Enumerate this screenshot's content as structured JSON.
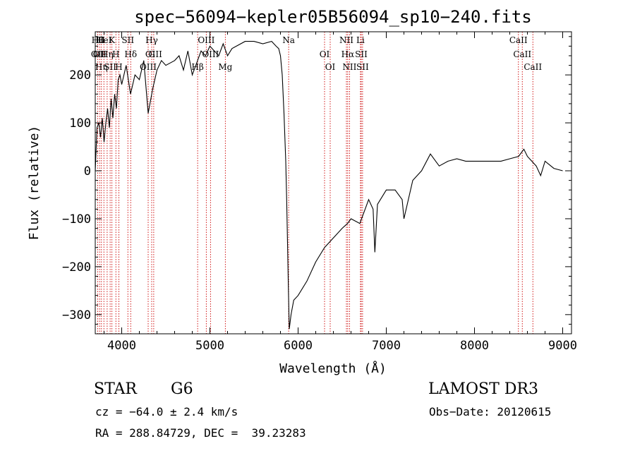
{
  "chart_data": {
    "type": "line",
    "title": "spec−56094−kepler05B56094_sp10−240.fits",
    "xlabel": "Wavelength (Å)",
    "ylabel": "Flux (relative)",
    "xlim": [
      3700,
      9100
    ],
    "ylim": [
      -340,
      290
    ],
    "xticks": [
      4000,
      5000,
      6000,
      7000,
      8000,
      9000
    ],
    "xtick_labels": [
      "4000",
      "5000",
      "6000",
      "7000",
      "8000",
      "9000"
    ],
    "yticks": [
      -300,
      -200,
      -100,
      0,
      100,
      200
    ],
    "ytick_labels": [
      "−300",
      "−200",
      "−100",
      "0",
      "100",
      "200"
    ],
    "grid": false,
    "line_color": "#000000",
    "marker_color": "#cc0000",
    "series": [
      {
        "x": [
          3700,
          3720,
          3740,
          3760,
          3780,
          3800,
          3820,
          3840,
          3860,
          3880,
          3900,
          3920,
          3940,
          3960,
          3980,
          4000,
          4050,
          4100,
          4150,
          4200,
          4250,
          4300,
          4350,
          4400,
          4450,
          4500,
          4550,
          4600,
          4650,
          4700,
          4750,
          4800,
          4850,
          4900,
          4950,
          5000,
          5050,
          5100,
          5150,
          5200,
          5250,
          5300,
          5400,
          5500,
          5600,
          5700,
          5750,
          5780,
          5800,
          5820,
          5840,
          5860,
          5870,
          5880,
          5890,
          5900,
          5920,
          5950,
          6000,
          6100,
          6200,
          6300,
          6400,
          6500,
          6560,
          6600,
          6700,
          6800,
          6850,
          6870,
          6900,
          7000,
          7100,
          7180,
          7200,
          7300,
          7400,
          7500,
          7560,
          7600,
          7700,
          7800,
          7900,
          8000,
          8100,
          8200,
          8300,
          8400,
          8500,
          8560,
          8600,
          8700,
          8750,
          8800,
          8900,
          9000
        ],
        "y": [
          0,
          90,
          100,
          70,
          110,
          60,
          100,
          130,
          90,
          150,
          110,
          160,
          130,
          190,
          200,
          180,
          220,
          160,
          200,
          190,
          230,
          120,
          170,
          210,
          230,
          220,
          225,
          230,
          240,
          210,
          250,
          200,
          225,
          250,
          240,
          260,
          250,
          240,
          265,
          240,
          255,
          260,
          270,
          270,
          265,
          270,
          260,
          255,
          240,
          200,
          120,
          20,
          -60,
          -150,
          -250,
          -330,
          -300,
          -270,
          -260,
          -230,
          -190,
          -160,
          -140,
          -120,
          -110,
          -100,
          -110,
          -60,
          -80,
          -170,
          -70,
          -40,
          -40,
          -60,
          -100,
          -20,
          0,
          35,
          20,
          10,
          20,
          25,
          20,
          20,
          20,
          20,
          20,
          25,
          30,
          45,
          30,
          10,
          -10,
          20,
          5,
          0
        ]
      }
    ],
    "line_markers": [
      {
        "x": 3728,
        "labels": [
          "Hθ",
          "OII"
        ]
      },
      {
        "x": 3750,
        "labels": [
          "OII"
        ]
      },
      {
        "x": 3770,
        "labels": [
          "Hη",
          "H"
        ]
      },
      {
        "x": 3798,
        "labels": [
          "HeI"
        ]
      },
      {
        "x": 3835,
        "labels": [
          "Hη"
        ]
      },
      {
        "x": 3869,
        "labels": [
          "SII"
        ]
      },
      {
        "x": 3889,
        "labels": [
          "K"
        ]
      },
      {
        "x": 3934,
        "labels": [
          "H"
        ]
      },
      {
        "x": 3968,
        "labels": [
          "H"
        ]
      },
      {
        "x": 4070,
        "labels": [
          "SII"
        ]
      },
      {
        "x": 4102,
        "labels": [
          "Hδ"
        ]
      },
      {
        "x": 4300,
        "labels": [
          "OIII"
        ]
      },
      {
        "x": 4340,
        "labels": [
          "Hγ",
          "G"
        ]
      },
      {
        "x": 4363,
        "labels": [
          "OIII"
        ]
      },
      {
        "x": 4861,
        "labels": [
          "Hβ"
        ]
      },
      {
        "x": 4959,
        "labels": [
          "OIII"
        ]
      },
      {
        "x": 5007,
        "labels": [
          "OIII"
        ]
      },
      {
        "x": 5175,
        "labels": [
          "Mg"
        ]
      },
      {
        "x": 5893,
        "labels": [
          "Na"
        ]
      },
      {
        "x": 6300,
        "labels": [
          "OI"
        ]
      },
      {
        "x": 6364,
        "labels": [
          "OI"
        ]
      },
      {
        "x": 6548,
        "labels": [
          "NII"
        ]
      },
      {
        "x": 6563,
        "labels": [
          "Hα"
        ]
      },
      {
        "x": 6583,
        "labels": [
          "NII"
        ]
      },
      {
        "x": 6707,
        "labels": [
          "Li"
        ]
      },
      {
        "x": 6716,
        "labels": [
          "SII"
        ]
      },
      {
        "x": 6731,
        "labels": [
          "SII"
        ]
      },
      {
        "x": 8498,
        "labels": [
          "CaII"
        ]
      },
      {
        "x": 8542,
        "labels": [
          "CaII"
        ]
      },
      {
        "x": 8662,
        "labels": [
          "CaII"
        ]
      }
    ]
  },
  "info": {
    "object_class": "STAR",
    "subclass": "G6",
    "survey": "LAMOST DR3",
    "cz": "cz = −64.0 ± 2.4 km/s",
    "obs_date": "Obs−Date: 20120615",
    "coords": "RA = 288.84729, DEC =  39.23283"
  }
}
